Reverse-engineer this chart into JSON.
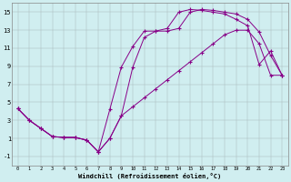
{
  "xlabel": "Windchill (Refroidissement éolien,°C)",
  "bg_color": "#d0eef0",
  "line_color": "#880088",
  "xlim": [
    -0.5,
    23.5
  ],
  "ylim": [
    -2,
    16
  ],
  "xticks": [
    0,
    1,
    2,
    3,
    4,
    5,
    6,
    7,
    8,
    9,
    10,
    11,
    12,
    13,
    14,
    15,
    16,
    17,
    18,
    19,
    20,
    21,
    22,
    23
  ],
  "yticks": [
    -1,
    1,
    3,
    5,
    7,
    9,
    11,
    13,
    15
  ],
  "line1_x": [
    0,
    1,
    2,
    3,
    4,
    5,
    6,
    7,
    8,
    9,
    10,
    11,
    12,
    13,
    14,
    15,
    16,
    17,
    18,
    19,
    20,
    21,
    22,
    23
  ],
  "line1_y": [
    4.3,
    3.0,
    2.1,
    1.2,
    1.1,
    1.1,
    0.8,
    -0.5,
    1.0,
    3.5,
    8.9,
    12.2,
    12.9,
    12.9,
    13.2,
    15.0,
    15.3,
    15.2,
    15.0,
    14.8,
    14.2,
    12.8,
    10.2,
    8.0
  ],
  "line2_x": [
    0,
    1,
    2,
    3,
    4,
    5,
    6,
    7,
    8,
    9,
    10,
    11,
    12,
    13,
    14,
    15,
    16,
    17,
    18,
    19,
    20,
    21,
    22,
    23
  ],
  "line2_y": [
    4.3,
    3.0,
    2.1,
    1.2,
    1.1,
    1.1,
    0.8,
    -0.5,
    4.2,
    8.9,
    11.2,
    12.9,
    12.9,
    13.2,
    15.0,
    15.3,
    15.2,
    15.0,
    14.8,
    14.2,
    13.5,
    9.2,
    10.7,
    8.0
  ],
  "line3_x": [
    0,
    1,
    2,
    3,
    4,
    5,
    6,
    7,
    8,
    9,
    10,
    11,
    12,
    13,
    14,
    15,
    16,
    17,
    18,
    19,
    20,
    21,
    22,
    23
  ],
  "line3_y": [
    4.3,
    3.0,
    2.1,
    1.2,
    1.1,
    1.1,
    0.8,
    -0.5,
    1.0,
    3.5,
    4.5,
    5.5,
    6.5,
    7.5,
    8.5,
    9.5,
    10.5,
    11.5,
    12.5,
    13.0,
    13.0,
    11.5,
    8.0,
    8.0
  ]
}
